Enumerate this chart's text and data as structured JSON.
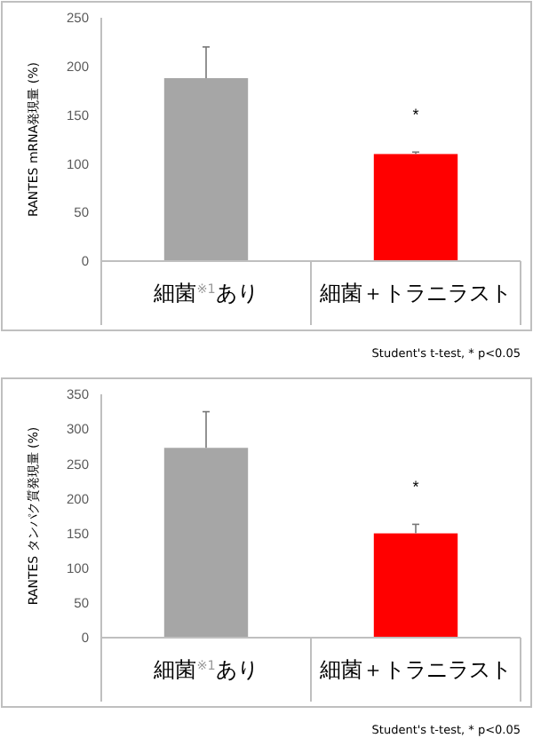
{
  "chart_data": [
    {
      "type": "bar",
      "ylabel": "RANTES mRNA発現量 (%)",
      "categories": [
        "細菌$^{※1}$あり",
        "細菌＋トラニラスト"
      ],
      "values": [
        188,
        110
      ],
      "colors": [
        "#a6a6a6",
        "#ff0000"
      ],
      "errors": [
        [
          188,
          220
        ],
        [
          110,
          112
        ]
      ],
      "ylim": [
        0,
        250
      ],
      "yticks": [
        0,
        50,
        100,
        150,
        200,
        250
      ],
      "grid": false,
      "annotations": [
        "*",
        "Student's t-test, * p<0.05"
      ]
    },
    {
      "type": "bar",
      "ylabel": "RANTES タンパク質発現量 (%)",
      "categories": [
        "細菌$^{※1}$あり",
        "細菌＋トラニラスト"
      ],
      "values": [
        273,
        150
      ],
      "colors": [
        "#a6a6a6",
        "#ff0000"
      ],
      "errors": [
        [
          273,
          325
        ],
        [
          150,
          163
        ]
      ],
      "ylim": [
        0,
        350
      ],
      "yticks": [
        0,
        50,
        100,
        150,
        200,
        250,
        300,
        350
      ],
      "grid": false,
      "annotations": [
        "*",
        "Student's t-test, * p<0.05"
      ]
    }
  ]
}
